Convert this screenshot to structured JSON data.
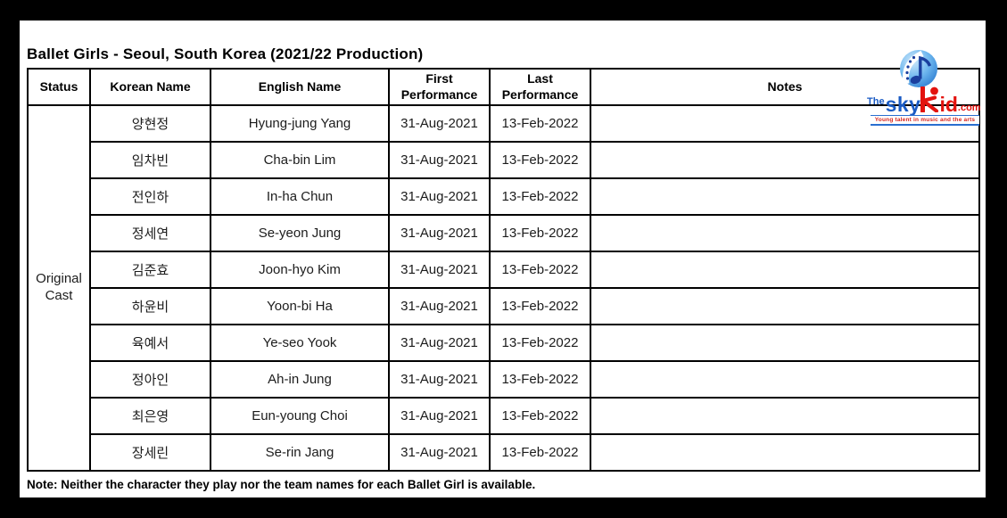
{
  "page": {
    "title": "Ballet Girls - Seoul, South Korea (2021/22 Production)",
    "note": "Note: Neither the character they play nor the team names for each Ballet Girl is available."
  },
  "logo": {
    "prefix": "The",
    "word_sky": "sky",
    "word_id": "id",
    "suffix": ".com",
    "tagline": "Young talent in music and the arts",
    "blue": "#1a5bc4",
    "red": "#e3130e"
  },
  "table": {
    "headers": [
      "Status",
      "Korean Name",
      "English Name",
      "First Performance",
      "Last Performance",
      "Notes"
    ],
    "status_label": "Original Cast",
    "rows": [
      {
        "korean": "양현정",
        "english": "Hyung-jung Yang",
        "first": "31-Aug-2021",
        "last": "13-Feb-2022",
        "notes": ""
      },
      {
        "korean": "임차빈",
        "english": "Cha-bin Lim",
        "first": "31-Aug-2021",
        "last": "13-Feb-2022",
        "notes": ""
      },
      {
        "korean": "전인하",
        "english": "In-ha Chun",
        "first": "31-Aug-2021",
        "last": "13-Feb-2022",
        "notes": ""
      },
      {
        "korean": "정세연",
        "english": "Se-yeon Jung",
        "first": "31-Aug-2021",
        "last": "13-Feb-2022",
        "notes": ""
      },
      {
        "korean": "김준효",
        "english": "Joon-hyo Kim",
        "first": "31-Aug-2021",
        "last": "13-Feb-2022",
        "notes": ""
      },
      {
        "korean": "하윤비",
        "english": "Yoon-bi Ha",
        "first": "31-Aug-2021",
        "last": "13-Feb-2022",
        "notes": ""
      },
      {
        "korean": "육예서",
        "english": "Ye-seo Yook",
        "first": "31-Aug-2021",
        "last": "13-Feb-2022",
        "notes": ""
      },
      {
        "korean": "정아인",
        "english": "Ah-in Jung",
        "first": "31-Aug-2021",
        "last": "13-Feb-2022",
        "notes": ""
      },
      {
        "korean": "최은영",
        "english": "Eun-young Choi",
        "first": "31-Aug-2021",
        "last": "13-Feb-2022",
        "notes": ""
      },
      {
        "korean": "장세린",
        "english": "Se-rin Jang",
        "first": "31-Aug-2021",
        "last": "13-Feb-2022",
        "notes": ""
      }
    ]
  }
}
